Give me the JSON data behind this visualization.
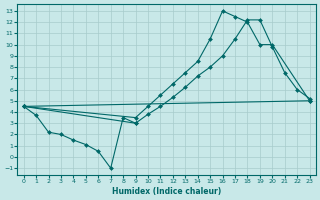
{
  "xlabel": "Humidex (Indice chaleur)",
  "bg_color": "#c8e8e8",
  "line_color": "#006868",
  "grid_color": "#a8cccc",
  "xlim": [
    -0.5,
    23.5
  ],
  "ylim": [
    -1.6,
    13.6
  ],
  "xticks": [
    0,
    1,
    2,
    3,
    4,
    5,
    6,
    7,
    8,
    9,
    10,
    11,
    12,
    13,
    14,
    15,
    16,
    17,
    18,
    19,
    20,
    21,
    22,
    23
  ],
  "yticks": [
    -1,
    0,
    1,
    2,
    3,
    4,
    5,
    6,
    7,
    8,
    9,
    10,
    11,
    12,
    13
  ],
  "curve1": {
    "x": [
      0,
      9,
      10,
      11,
      12,
      13,
      14,
      15,
      16,
      17,
      18,
      19,
      20,
      23
    ],
    "y": [
      4.5,
      3.5,
      4.5,
      5.5,
      6.5,
      7.5,
      8.5,
      10.5,
      13.0,
      12.5,
      12.0,
      10.0,
      10.0,
      5.0
    ]
  },
  "curve2": {
    "x": [
      0,
      9,
      10,
      11,
      12,
      13,
      14,
      15,
      16,
      17,
      18,
      19,
      20,
      21,
      22,
      23
    ],
    "y": [
      4.5,
      3.0,
      3.8,
      4.5,
      5.3,
      6.2,
      7.2,
      8.0,
      9.0,
      10.5,
      12.2,
      12.2,
      9.8,
      7.5,
      6.0,
      5.2
    ]
  },
  "curve3": {
    "x": [
      0,
      23
    ],
    "y": [
      4.5,
      5.0
    ]
  },
  "curve4": {
    "x": [
      0,
      1,
      2,
      3,
      4,
      5,
      6,
      7,
      8,
      9
    ],
    "y": [
      4.5,
      3.7,
      2.2,
      2.0,
      1.5,
      1.1,
      0.5,
      -1.0,
      3.5,
      3.0
    ]
  }
}
